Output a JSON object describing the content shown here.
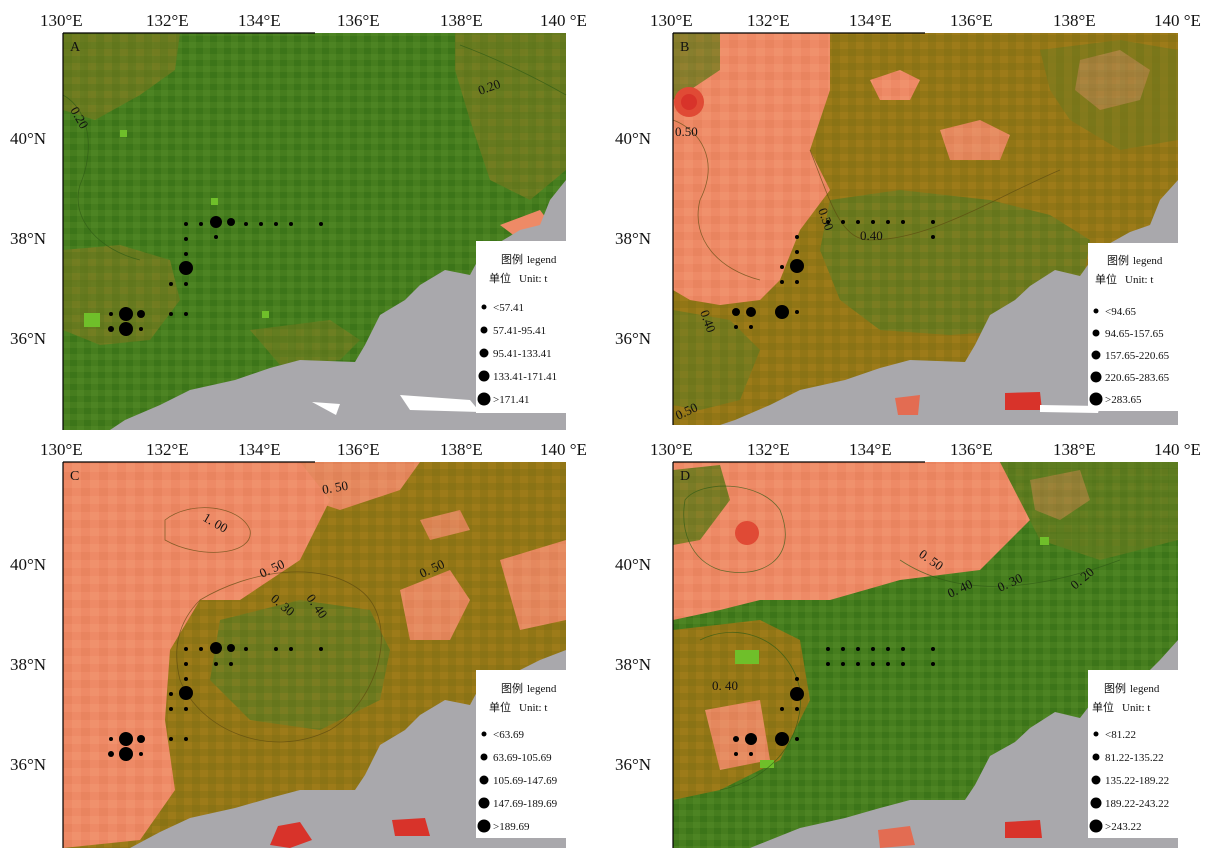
{
  "panels": [
    {
      "id": "A",
      "lon_labels": [
        "130°E",
        "132°E",
        "134°E",
        "136°E",
        "138°E",
        "140 °E"
      ],
      "lat_labels": [
        "40°N",
        "38°N",
        "36°N"
      ],
      "contour_labels": [
        "0.20",
        "0.20"
      ],
      "legend": {
        "title_cn": "图例",
        "title_en": "legend",
        "unit_cn": "单位",
        "unit_en": "Unit: t",
        "classes": [
          "<57.41",
          "57.41-95.41",
          "95.41-133.41",
          "133.41-171.41",
          ">171.41"
        ]
      }
    },
    {
      "id": "B",
      "lon_labels": [
        "130°E",
        "132°E",
        "134°E",
        "136°E",
        "138°E",
        "140 °E"
      ],
      "lat_labels": [
        "40°N",
        "38°N",
        "36°N"
      ],
      "contour_labels": [
        "0.50",
        "0.50",
        "0.40",
        "0.40",
        "0.50"
      ],
      "legend": {
        "title_cn": "图例",
        "title_en": "legend",
        "unit_cn": "单位",
        "unit_en": "Unit: t",
        "classes": [
          "<94.65",
          "94.65-157.65",
          "157.65-220.65",
          "220.65-283.65",
          ">283.65"
        ]
      }
    },
    {
      "id": "C",
      "lon_labels": [
        "130°E",
        "132°E",
        "134°E",
        "136°E",
        "138°E",
        "140 °E"
      ],
      "lat_labels": [
        "40°N",
        "38°N",
        "36°N"
      ],
      "contour_labels": [
        "0. 50",
        "1. 00",
        "0. 50",
        "0. 50",
        "0. 30",
        "0. 40"
      ],
      "legend": {
        "title_cn": "图例",
        "title_en": "legend",
        "unit_cn": "单位",
        "unit_en": "Unit: t",
        "classes": [
          "<63.69",
          "63.69-105.69",
          "105.69-147.69",
          "147.69-189.69",
          ">189.69"
        ]
      }
    },
    {
      "id": "D",
      "lon_labels": [
        "130°E",
        "132°E",
        "134°E",
        "136°E",
        "138°E",
        "140 °E"
      ],
      "lat_labels": [
        "40°N",
        "38°N",
        "36°N"
      ],
      "contour_labels": [
        "0. 50",
        "0. 40",
        "0. 30",
        "0. 20",
        "0. 40"
      ],
      "legend": {
        "title_cn": "图例",
        "title_en": "legend",
        "unit_cn": "单位",
        "unit_en": "Unit: t",
        "classes": [
          "<81.22",
          "81.22-135.22",
          "135.22-189.22",
          "189.22-243.22",
          ">243.22"
        ]
      }
    }
  ],
  "colors": {
    "green": "#3f7a1c",
    "olive": "#6d7a1f",
    "brown": "#8f7716",
    "salmon": "#ee8a66",
    "red": "#d8332a",
    "land": "#a9a8ac",
    "bright_green": "#6fbf2a"
  }
}
